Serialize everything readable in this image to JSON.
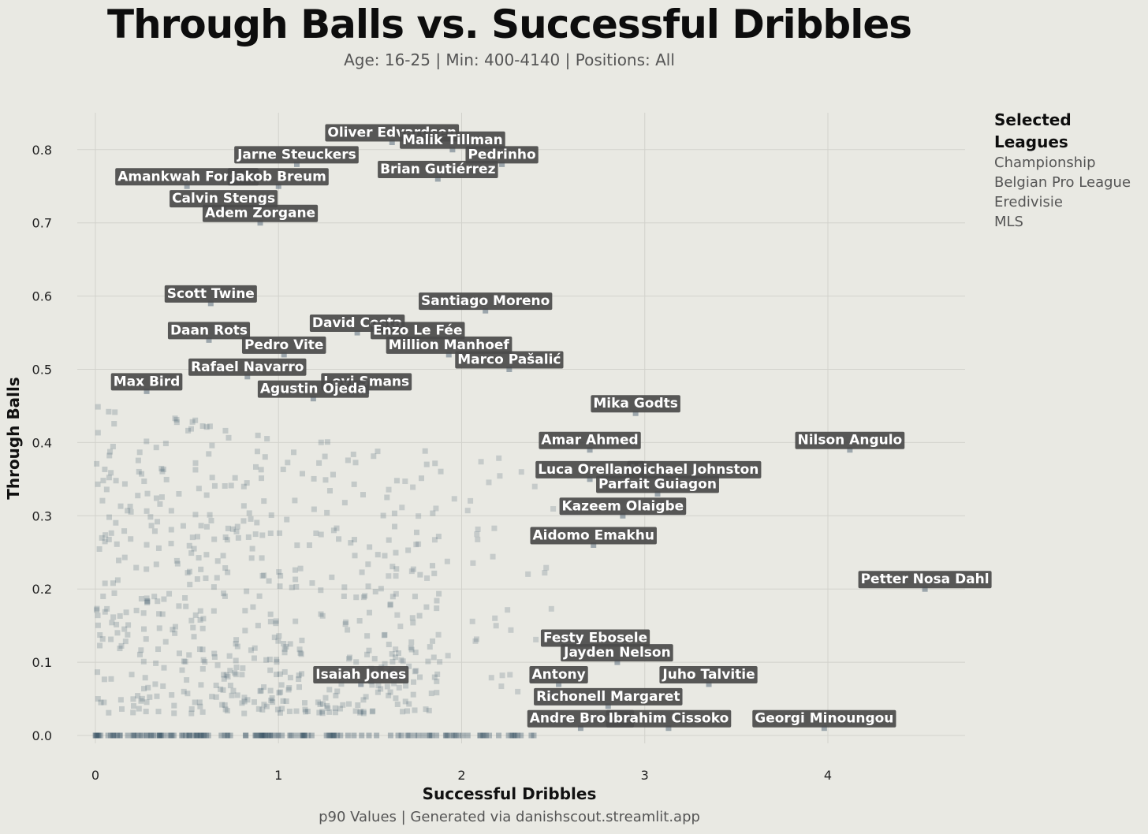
{
  "header": {
    "title": "Through Balls vs. Successful Dribbles",
    "subtitle": "Age: 16-25 | Min: 400-4140 | Positions: All"
  },
  "legend": {
    "title": "Selected Leagues",
    "items": [
      "Championship",
      "Belgian Pro League",
      "Eredivisie",
      "MLS"
    ]
  },
  "footer": {
    "text": "p90 Values | Generated via danishscout.streamlit.app"
  },
  "colors": {
    "background": "#e9e9e3",
    "point": "#3d5568",
    "label_box": "#4a4a4a",
    "label_text": "#ffffff",
    "grid": "#d2d2cc"
  },
  "chart_data": {
    "type": "scatter",
    "title": "Through Balls vs. Successful Dribbles",
    "subtitle": "Age: 16-25 | Min: 400-4140 | Positions: All",
    "xlabel": "Successful Dribbles",
    "ylabel": "Through Balls",
    "xlim": [
      -0.05,
      4.75
    ],
    "ylim": [
      -0.01,
      0.85
    ],
    "x_ticks": [
      0,
      1,
      2,
      3,
      4
    ],
    "x_tick_labels": [
      "0",
      "1",
      "2",
      "3",
      "4"
    ],
    "y_ticks": [
      0.0,
      0.1,
      0.2,
      0.3,
      0.4,
      0.5,
      0.6,
      0.7,
      0.8
    ],
    "y_tick_labels": [
      "0.0",
      "0.1",
      "0.2",
      "0.3",
      "0.4",
      "0.5",
      "0.6",
      "0.7",
      "0.8"
    ],
    "grid": true,
    "legend_placement": "right",
    "labeled_points": [
      {
        "name": "Oliver Edvardsen",
        "x": 1.62,
        "y": 0.81
      },
      {
        "name": "Malik Tillman",
        "x": 1.95,
        "y": 0.8
      },
      {
        "name": "Pedrinho",
        "x": 2.22,
        "y": 0.78
      },
      {
        "name": "Jarne Steuckers",
        "x": 1.1,
        "y": 0.78
      },
      {
        "name": "Brian Gutiérrez",
        "x": 1.87,
        "y": 0.76
      },
      {
        "name": "Amankwah Forson",
        "x": 0.5,
        "y": 0.75
      },
      {
        "name": "Jakob Breum",
        "x": 1.0,
        "y": 0.75
      },
      {
        "name": "Calvin Stengs",
        "x": 0.7,
        "y": 0.72
      },
      {
        "name": "Adem Zorgane",
        "x": 0.9,
        "y": 0.7
      },
      {
        "name": "Scott Twine",
        "x": 0.63,
        "y": 0.59
      },
      {
        "name": "Santiago Moreno",
        "x": 2.13,
        "y": 0.58
      },
      {
        "name": "David Costa",
        "x": 1.43,
        "y": 0.55
      },
      {
        "name": "Enzo Le Fée",
        "x": 1.76,
        "y": 0.54
      },
      {
        "name": "Daan Rots",
        "x": 0.62,
        "y": 0.54
      },
      {
        "name": "Million Manhoef",
        "x": 1.93,
        "y": 0.52
      },
      {
        "name": "Pedro Vite",
        "x": 1.03,
        "y": 0.52
      },
      {
        "name": "Marco Pašalić",
        "x": 2.26,
        "y": 0.5
      },
      {
        "name": "Rafael Navarro",
        "x": 0.83,
        "y": 0.49
      },
      {
        "name": "Levi Smans",
        "x": 1.48,
        "y": 0.47
      },
      {
        "name": "Max Bird",
        "x": 0.28,
        "y": 0.47
      },
      {
        "name": "Agustin Ojeda",
        "x": 1.19,
        "y": 0.46
      },
      {
        "name": "Mika Godts",
        "x": 2.95,
        "y": 0.44
      },
      {
        "name": "Nilson Angulo",
        "x": 4.12,
        "y": 0.39
      },
      {
        "name": "Amar Ahmed",
        "x": 2.7,
        "y": 0.39
      },
      {
        "name": "Michael Johnston",
        "x": 3.27,
        "y": 0.35
      },
      {
        "name": "Luca Orellano",
        "x": 2.7,
        "y": 0.35
      },
      {
        "name": "Parfait Guiagon",
        "x": 3.07,
        "y": 0.33
      },
      {
        "name": "Kazeem Olaigbe",
        "x": 2.88,
        "y": 0.3
      },
      {
        "name": "Aidomo Emakhu",
        "x": 2.72,
        "y": 0.26
      },
      {
        "name": "Petter Nosa Dahl",
        "x": 4.53,
        "y": 0.2
      },
      {
        "name": "Festy Ebosele",
        "x": 2.73,
        "y": 0.12
      },
      {
        "name": "Jayden Nelson",
        "x": 2.85,
        "y": 0.1
      },
      {
        "name": "Isaiah Jones",
        "x": 1.45,
        "y": 0.07
      },
      {
        "name": "Juho Talvitie",
        "x": 3.35,
        "y": 0.07
      },
      {
        "name": "Antony",
        "x": 2.53,
        "y": 0.07
      },
      {
        "name": "Richonell Margaret",
        "x": 2.8,
        "y": 0.04
      },
      {
        "name": "Andre Brooks",
        "x": 2.65,
        "y": 0.01
      },
      {
        "name": "Ibrahim Cissoko",
        "x": 3.13,
        "y": 0.01
      },
      {
        "name": "Georgi Minoungou",
        "x": 3.98,
        "y": 0.01
      }
    ]
  }
}
